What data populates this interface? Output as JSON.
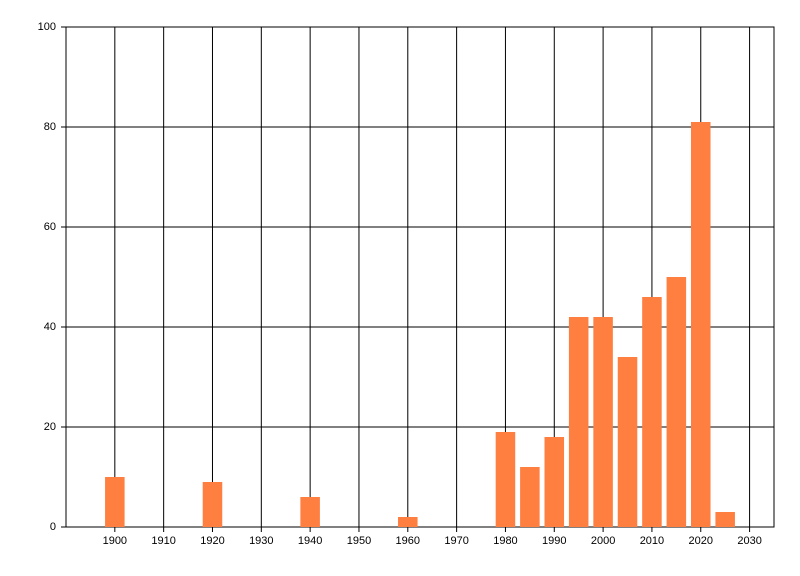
{
  "chart_data": {
    "type": "bar",
    "x": [
      1900,
      1920,
      1940,
      1960,
      1980,
      1985,
      1990,
      1995,
      2000,
      2005,
      2010,
      2015,
      2020,
      2025
    ],
    "values": [
      10,
      9,
      6,
      2,
      19,
      12,
      18,
      42,
      42,
      34,
      46,
      50,
      81,
      3
    ],
    "color": "#ff7f40",
    "xlim": [
      1890,
      2035
    ],
    "xticks": [
      1900,
      1910,
      1920,
      1930,
      1940,
      1950,
      1960,
      1970,
      1980,
      1990,
      2000,
      2010,
      2020,
      2030
    ],
    "ylim": [
      0,
      100
    ],
    "yticks": [
      0,
      20,
      40,
      60,
      80,
      100
    ],
    "grid": true
  }
}
